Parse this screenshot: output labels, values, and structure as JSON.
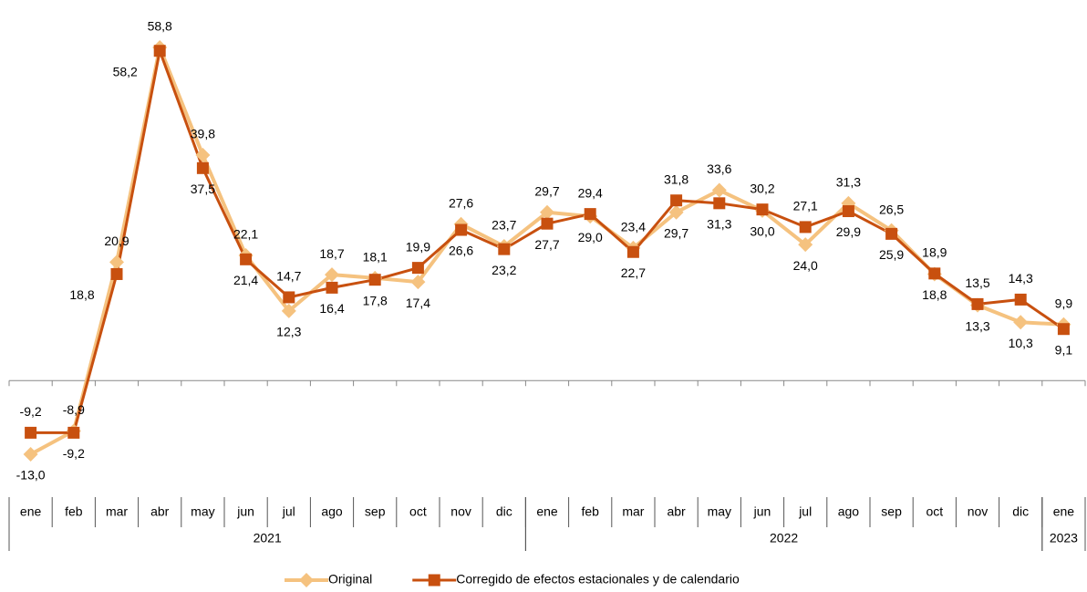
{
  "chart_data": {
    "type": "line",
    "categories": [
      "ene",
      "feb",
      "mar",
      "abr",
      "may",
      "jun",
      "jul",
      "ago",
      "sep",
      "oct",
      "nov",
      "dic",
      "ene",
      "feb",
      "mar",
      "abr",
      "may",
      "jun",
      "jul",
      "ago",
      "sep",
      "oct",
      "nov",
      "dic",
      "ene"
    ],
    "groups": [
      {
        "label": "2021",
        "span": 12
      },
      {
        "label": "2022",
        "span": 12
      },
      {
        "label": "2023",
        "span": 1
      }
    ],
    "series": [
      {
        "name": "Original",
        "color": "#f5c27f",
        "marker": "diamond",
        "values": [
          -13.0,
          -8.9,
          20.9,
          58.8,
          39.8,
          22.1,
          12.3,
          18.7,
          18.1,
          17.4,
          27.6,
          23.7,
          29.7,
          29.0,
          23.4,
          29.7,
          33.6,
          30.0,
          24.0,
          31.3,
          26.5,
          18.8,
          13.3,
          10.3,
          9.9
        ],
        "value_labels": [
          "-13,0",
          "-8,9",
          "20,9",
          "58,8",
          "39,8",
          "22,1",
          "12,3",
          "18,7",
          "18,1",
          "17,4",
          "27,6",
          "23,7",
          "29,7",
          "29,0",
          "23,4",
          "29,7",
          "33,6",
          "30,0",
          "24,0",
          "31,3",
          "26,5",
          "18,8",
          "13,3",
          "10,3",
          "9,9"
        ]
      },
      {
        "name": "Corregido de efectos estacionales y de calendario",
        "color": "#c8500f",
        "marker": "square",
        "values": [
          -9.2,
          -9.2,
          18.8,
          58.2,
          37.5,
          21.4,
          14.7,
          16.4,
          17.8,
          19.9,
          26.6,
          23.2,
          27.7,
          29.4,
          22.7,
          31.8,
          31.3,
          30.2,
          27.1,
          29.9,
          25.9,
          18.9,
          13.5,
          14.3,
          9.1
        ],
        "value_labels": [
          "-9,2",
          "-9,2",
          "18,8",
          "58,2",
          "37,5",
          "21,4",
          "14,7",
          "16,4",
          "17,8",
          "19,9",
          "26,6",
          "23,2",
          "27,7",
          "29,4",
          "22,7",
          "31,8",
          "31,3",
          "30,2",
          "27,1",
          "29,9",
          "25,9",
          "18,9",
          "13,5",
          "14,3",
          "9,1"
        ]
      }
    ],
    "legend": "bottom"
  }
}
